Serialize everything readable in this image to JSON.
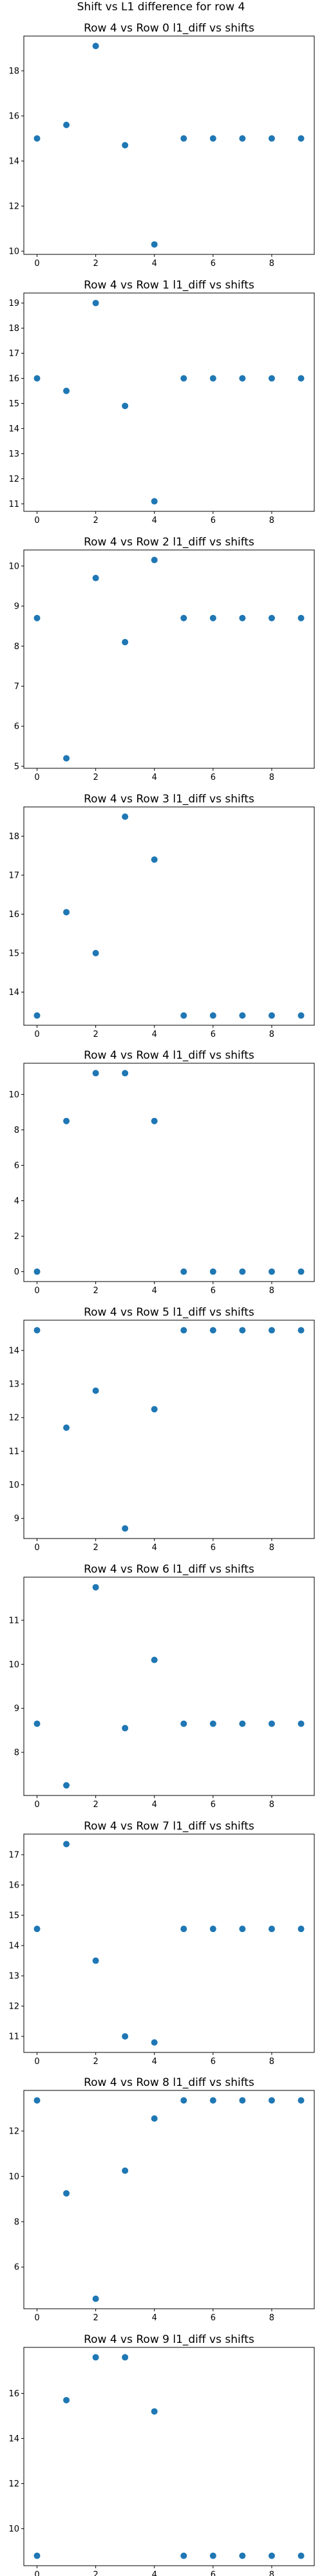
{
  "figure": {
    "suptitle": "Shift vs L1 difference for row 4"
  },
  "chart_data": [
    {
      "type": "scatter",
      "title": "Row 4 vs Row 0 l1_diff vs shifts",
      "x": [
        0,
        1,
        2,
        3,
        4,
        5,
        6,
        7,
        8,
        9
      ],
      "y": [
        15.0,
        15.6,
        19.1,
        14.7,
        10.3,
        15.0,
        15.0,
        15.0,
        15.0,
        15.0
      ],
      "xlim": [
        -0.45,
        9.45
      ],
      "ylim": [
        9.86,
        19.54
      ],
      "xticks": [
        0,
        2,
        4,
        6,
        8
      ],
      "yticks": [
        10,
        12,
        14,
        16,
        18
      ],
      "xlabel": "",
      "ylabel": "",
      "grid": false,
      "color": "#1f77b4"
    },
    {
      "type": "scatter",
      "title": "Row 4 vs Row 1 l1_diff vs shifts",
      "x": [
        0,
        1,
        2,
        3,
        4,
        5,
        6,
        7,
        8,
        9
      ],
      "y": [
        16.0,
        15.5,
        19.0,
        14.9,
        11.1,
        16.0,
        16.0,
        16.0,
        16.0,
        16.0
      ],
      "xlim": [
        -0.45,
        9.45
      ],
      "ylim": [
        10.7,
        19.4
      ],
      "xticks": [
        0,
        2,
        4,
        6,
        8
      ],
      "yticks": [
        11,
        12,
        13,
        14,
        15,
        16,
        17,
        18,
        19
      ],
      "xlabel": "",
      "ylabel": "",
      "grid": false,
      "color": "#1f77b4"
    },
    {
      "type": "scatter",
      "title": "Row 4 vs Row 2 l1_diff vs shifts",
      "x": [
        0,
        1,
        2,
        3,
        4,
        5,
        6,
        7,
        8,
        9
      ],
      "y": [
        8.7,
        5.2,
        9.7,
        8.1,
        10.15,
        8.7,
        8.7,
        8.7,
        8.7,
        8.7
      ],
      "xlim": [
        -0.45,
        9.45
      ],
      "ylim": [
        4.95,
        10.4
      ],
      "xticks": [
        0,
        2,
        4,
        6,
        8
      ],
      "yticks": [
        5,
        6,
        7,
        8,
        9,
        10
      ],
      "xlabel": "",
      "ylabel": "",
      "grid": false,
      "color": "#1f77b4"
    },
    {
      "type": "scatter",
      "title": "Row 4 vs Row 3 l1_diff vs shifts",
      "x": [
        0,
        1,
        2,
        3,
        4,
        5,
        6,
        7,
        8,
        9
      ],
      "y": [
        13.4,
        16.05,
        15.0,
        18.5,
        17.4,
        13.4,
        13.4,
        13.4,
        13.4,
        13.4
      ],
      "xlim": [
        -0.45,
        9.45
      ],
      "ylim": [
        13.15,
        18.75
      ],
      "xticks": [
        0,
        2,
        4,
        6,
        8
      ],
      "yticks": [
        14,
        15,
        16,
        17,
        18
      ],
      "xlabel": "",
      "ylabel": "",
      "grid": false,
      "color": "#1f77b4"
    },
    {
      "type": "scatter",
      "title": "Row 4 vs Row 4 l1_diff vs shifts",
      "x": [
        0,
        1,
        2,
        3,
        4,
        5,
        6,
        7,
        8,
        9
      ],
      "y": [
        0.0,
        8.5,
        11.2,
        11.2,
        8.5,
        0.0,
        0.0,
        0.0,
        0.0,
        0.0
      ],
      "xlim": [
        -0.45,
        9.45
      ],
      "ylim": [
        -0.56,
        11.76
      ],
      "xticks": [
        0,
        2,
        4,
        6,
        8
      ],
      "yticks": [
        0,
        2,
        4,
        6,
        8,
        10
      ],
      "xlabel": "",
      "ylabel": "",
      "grid": false,
      "color": "#1f77b4"
    },
    {
      "type": "scatter",
      "title": "Row 4 vs Row 5 l1_diff vs shifts",
      "x": [
        0,
        1,
        2,
        3,
        4,
        5,
        6,
        7,
        8,
        9
      ],
      "y": [
        14.6,
        11.7,
        12.8,
        8.7,
        12.25,
        14.6,
        14.6,
        14.6,
        14.6,
        14.6
      ],
      "xlim": [
        -0.45,
        9.45
      ],
      "ylim": [
        8.4,
        14.9
      ],
      "xticks": [
        0,
        2,
        4,
        6,
        8
      ],
      "yticks": [
        9,
        10,
        11,
        12,
        13,
        14
      ],
      "xlabel": "",
      "ylabel": "",
      "grid": false,
      "color": "#1f77b4"
    },
    {
      "type": "scatter",
      "title": "Row 4 vs Row 6 l1_diff vs shifts",
      "x": [
        0,
        1,
        2,
        3,
        4,
        5,
        6,
        7,
        8,
        9
      ],
      "y": [
        8.65,
        7.25,
        11.75,
        8.55,
        10.1,
        8.65,
        8.65,
        8.65,
        8.65,
        8.65
      ],
      "xlim": [
        -0.45,
        9.45
      ],
      "ylim": [
        7.02,
        11.98
      ],
      "xticks": [
        0,
        2,
        4,
        6,
        8
      ],
      "yticks": [
        8,
        9,
        10,
        11
      ],
      "xlabel": "",
      "ylabel": "",
      "grid": false,
      "color": "#1f77b4"
    },
    {
      "type": "scatter",
      "title": "Row 4 vs Row 7 l1_diff vs shifts",
      "x": [
        0,
        1,
        2,
        3,
        4,
        5,
        6,
        7,
        8,
        9
      ],
      "y": [
        14.55,
        17.35,
        13.5,
        11.0,
        10.8,
        14.55,
        14.55,
        14.55,
        14.55,
        14.55
      ],
      "xlim": [
        -0.45,
        9.45
      ],
      "ylim": [
        10.47,
        17.68
      ],
      "xticks": [
        0,
        2,
        4,
        6,
        8
      ],
      "yticks": [
        11,
        12,
        13,
        14,
        15,
        16,
        17
      ],
      "xlabel": "",
      "ylabel": "",
      "grid": false,
      "color": "#1f77b4"
    },
    {
      "type": "scatter",
      "title": "Row 4 vs Row 8 l1_diff vs shifts",
      "x": [
        0,
        1,
        2,
        3,
        4,
        5,
        6,
        7,
        8,
        9
      ],
      "y": [
        13.35,
        9.25,
        4.6,
        10.25,
        12.55,
        13.35,
        13.35,
        13.35,
        13.35,
        13.35
      ],
      "xlim": [
        -0.45,
        9.45
      ],
      "ylim": [
        4.16,
        13.79
      ],
      "xticks": [
        0,
        2,
        4,
        6,
        8
      ],
      "yticks": [
        6,
        8,
        10,
        12
      ],
      "xlabel": "",
      "ylabel": "",
      "grid": false,
      "color": "#1f77b4"
    },
    {
      "type": "scatter",
      "title": "Row 4 vs Row 9 l1_diff vs shifts",
      "x": [
        0,
        1,
        2,
        3,
        4,
        5,
        6,
        7,
        8,
        9
      ],
      "y": [
        8.8,
        15.7,
        17.6,
        17.6,
        15.2,
        8.8,
        8.8,
        8.8,
        8.8,
        8.8
      ],
      "xlim": [
        -0.45,
        9.45
      ],
      "ylim": [
        8.36,
        18.04
      ],
      "xticks": [
        0,
        2,
        4,
        6,
        8
      ],
      "yticks": [
        10,
        12,
        14,
        16
      ],
      "xlabel": "",
      "ylabel": "",
      "grid": false,
      "color": "#1f77b4"
    }
  ]
}
